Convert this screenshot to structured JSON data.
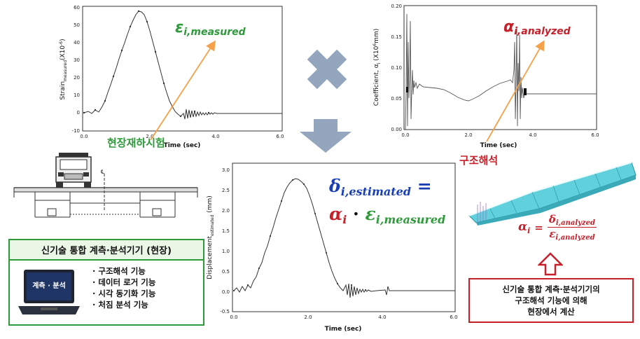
{
  "top_left_chart": {
    "ylabel": "Strain",
    "ylabel_sub": "measured",
    "ylabel_unit": "(X10",
    "ylabel_exp": "-6",
    "ylabel_end": ")",
    "xlabel": "Time (sec)",
    "xticks": [
      "0.0",
      "2.0",
      "4.0",
      "6.0"
    ],
    "yticks": [
      "60",
      "50",
      "40",
      "30",
      "20",
      "10",
      "0",
      "-10"
    ],
    "formula_main": "ε",
    "formula_sub": "i,measured"
  },
  "top_right_chart": {
    "ylabel": "Coefficient, α",
    "ylabel_sub": "i",
    "ylabel_unit": " (X10",
    "ylabel_exp": "6",
    "ylabel_end": "mm)",
    "xlabel": "Time (sec)",
    "xticks": [
      "0.0",
      "2.0",
      "4.0",
      "6.0"
    ],
    "yticks": [
      "0.20",
      "0.15",
      "0.10",
      "0.05",
      "0.00"
    ],
    "formula_main": "α",
    "formula_sub": "i,analyzed"
  },
  "bottom_chart": {
    "ylabel": "Displacement",
    "ylabel_sub": "estimated",
    "ylabel_unit": " (mm)",
    "xlabel": "Time (sec)",
    "xticks": [
      "0.0",
      "2.0",
      "4.0",
      "6.0"
    ],
    "yticks": [
      "3.0",
      "2.5",
      "2.0",
      "1.5",
      "1.0",
      "0.5",
      "0.0",
      "-0.5"
    ]
  },
  "formula": {
    "delta": "δ",
    "delta_sub": "i,estimated",
    "equals": "=",
    "alpha": "α",
    "alpha_sub": "i",
    "dot": "·",
    "eps": "ε",
    "eps_sub": "i,measured"
  },
  "ratio_formula": {
    "alpha": "α",
    "alpha_sub": "i",
    "equals": "=",
    "num": "δ",
    "num_sub": "i,analyzed",
    "den": "ε",
    "den_sub": "i,analyzed"
  },
  "labels": {
    "field_test": "현장재하시험",
    "structural_analysis": "구조해석",
    "centerline": "℄"
  },
  "device_box": {
    "title": "신기술 통합 계측·분석기기 (현장)",
    "laptop_label": "계측 · 분석",
    "features": [
      "· 구조해석 기능",
      "· 데이터 로거 기능",
      "· 시각 동기화 기능",
      "· 처짐 분석 기능"
    ]
  },
  "note_box": {
    "lines": [
      "신기술 통합 계측·분석기기의",
      "구조해석 기능에 의해",
      "현장에서 계산"
    ]
  },
  "colors": {
    "green": "#2e9a3a",
    "red": "#c8202a",
    "blue": "#1a3fb5",
    "orange": "#f5a14a",
    "gray_arrow": "#93a6bd"
  }
}
